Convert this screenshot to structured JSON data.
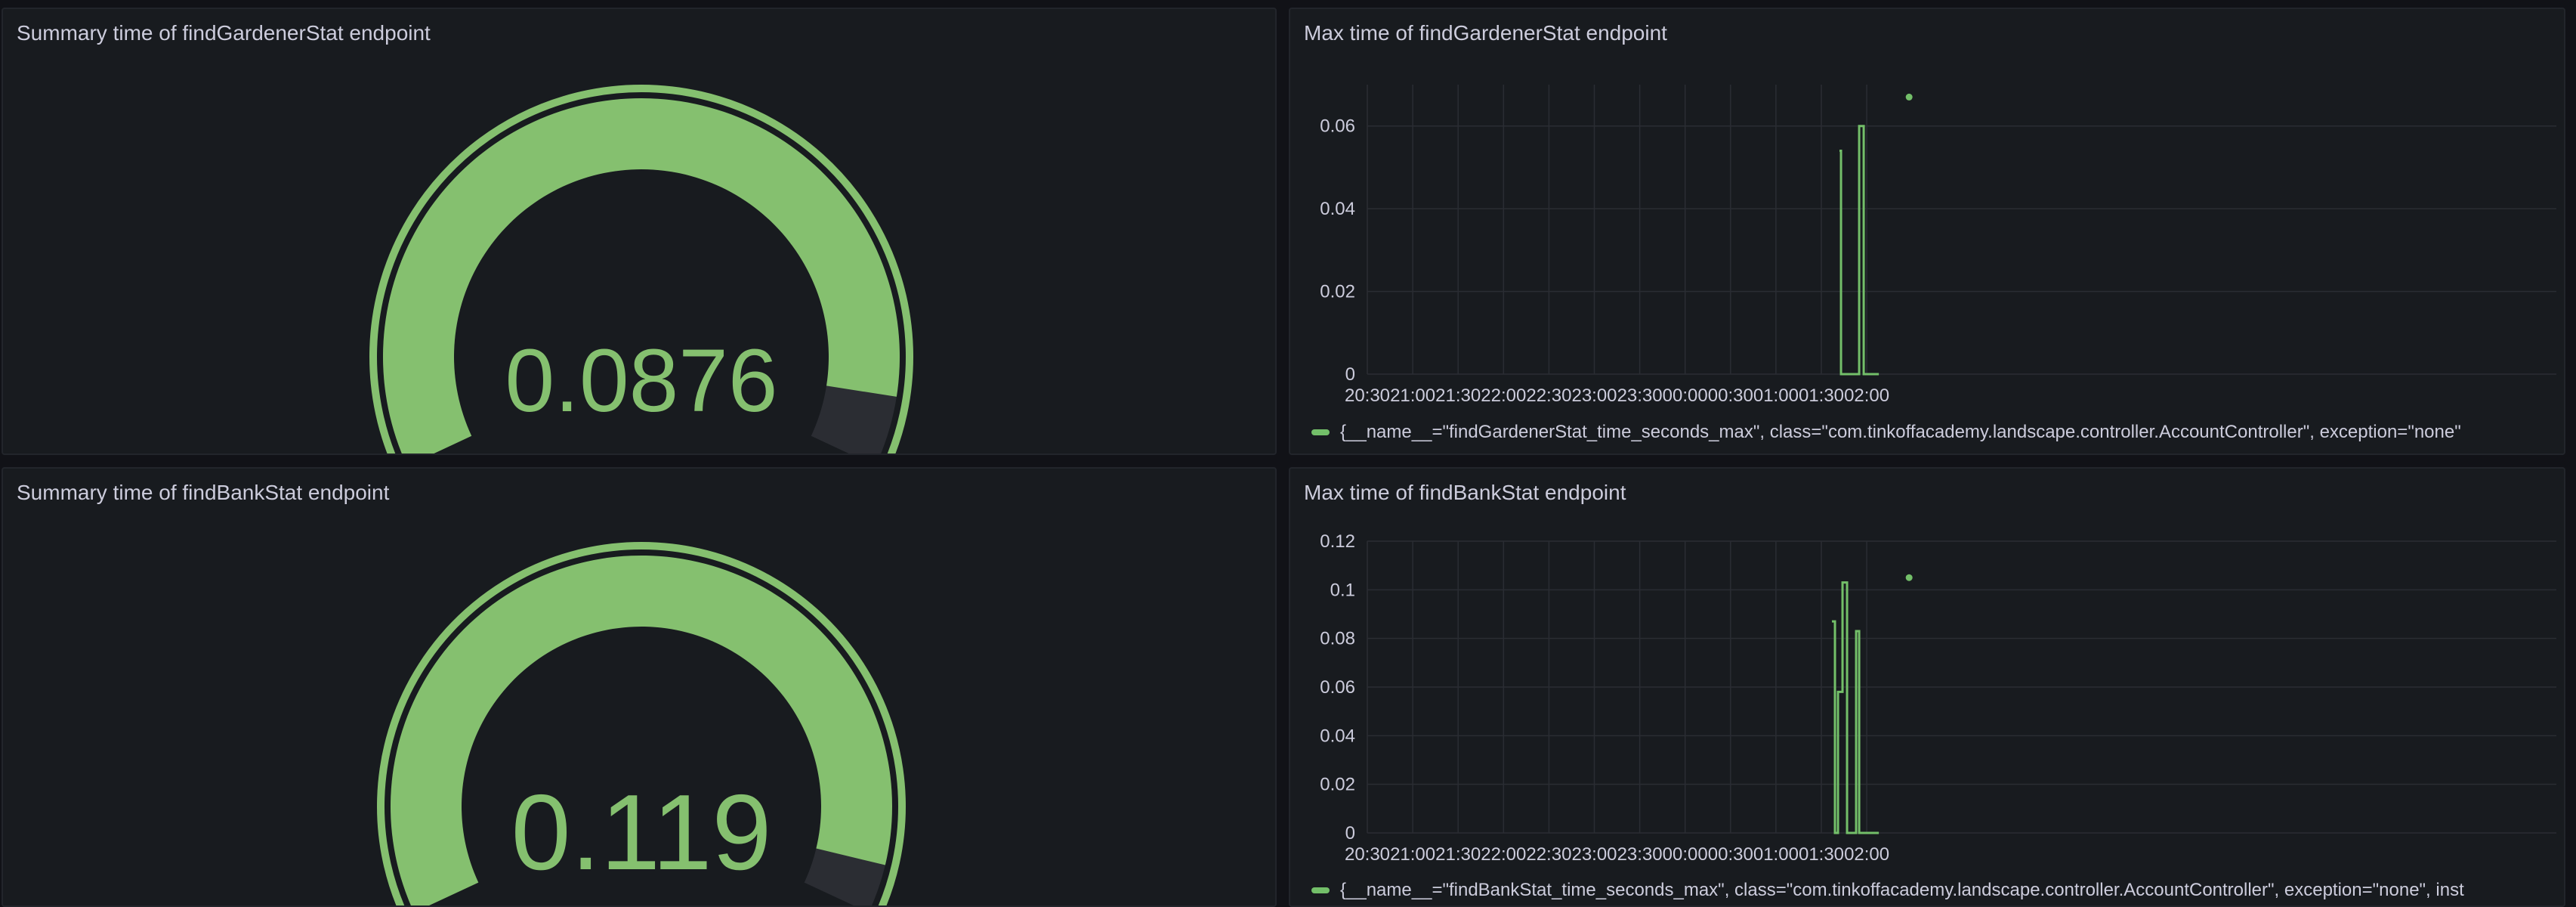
{
  "colors": {
    "series": "#73bf69",
    "gauge_fill": "#85c06f",
    "gauge_track": "#2b2d33",
    "panel_bg": "#181b1f",
    "grid": "#2a2d33",
    "axis_text": "#ccccdc"
  },
  "panels": {
    "gauge_gardener": {
      "title": "Summary time of findGardenerStat endpoint",
      "value_text": "0.0876",
      "value": 0.0876,
      "fill_fraction": 0.93
    },
    "gauge_bank": {
      "title": "Summary time of findBankStat endpoint",
      "value_text": "0.119",
      "value": 0.119,
      "fill_fraction": 0.95
    },
    "ts_gardener": {
      "title": "Max time of findGardenerStat endpoint",
      "legend": "{__name__=\"findGardenerStat_time_seconds_max\", class=\"com.tinkoffacademy.landscape.controller.AccountController\", exception=\"none\""
    },
    "ts_bank": {
      "title": "Max time of findBankStat endpoint",
      "legend": "{__name__=\"findBankStat_time_seconds_max\", class=\"com.tinkoffacademy.landscape.controller.AccountController\", exception=\"none\", inst"
    }
  },
  "chart_data": [
    {
      "type": "line",
      "title": "Max time of findGardenerStat endpoint",
      "x_ticks": [
        "20:30",
        "21:00",
        "21:30",
        "22:00",
        "22:30",
        "23:00",
        "23:30",
        "00:00",
        "00:30",
        "01:00",
        "01:30",
        "02:00"
      ],
      "y_ticks": [
        "0",
        "0.02",
        "0.04",
        "0.06"
      ],
      "ylim": [
        0,
        0.07
      ],
      "series": [
        {
          "name": "{__name__=\"findGardenerStat_time_seconds_max\", class=\"com.tinkoffacademy.landscape.controller.AccountController\", exception=\"none\"",
          "points": [
            [
              "01:42",
              0.054
            ],
            [
              "01:43",
              0.054
            ],
            [
              "01:43",
              0
            ],
            [
              "01:48",
              0
            ],
            [
              "01:48",
              0
            ],
            [
              "01:55",
              0
            ],
            [
              "01:55",
              0.06
            ],
            [
              "01:58",
              0.06
            ],
            [
              "01:58",
              0
            ],
            [
              "02:08",
              0
            ]
          ],
          "dots": [
            [
              "02:28",
              0.067
            ]
          ]
        }
      ]
    },
    {
      "type": "line",
      "title": "Max time of findBankStat endpoint",
      "x_ticks": [
        "20:30",
        "21:00",
        "21:30",
        "22:00",
        "22:30",
        "23:00",
        "23:30",
        "00:00",
        "00:30",
        "01:00",
        "01:30",
        "02:00"
      ],
      "y_ticks": [
        "0",
        "0.02",
        "0.04",
        "0.06",
        "0.08",
        "0.1",
        "0.12"
      ],
      "ylim": [
        0,
        0.12
      ],
      "series": [
        {
          "name": "{__name__=\"findBankStat_time_seconds_max\", class=\"com.tinkoffacademy.landscape.controller.AccountController\", exception=\"none\", inst",
          "points": [
            [
              "01:37",
              0.087
            ],
            [
              "01:39",
              0.087
            ],
            [
              "01:39",
              0
            ],
            [
              "01:41",
              0
            ],
            [
              "01:41",
              0.058
            ],
            [
              "01:44",
              0.058
            ],
            [
              "01:44",
              0.103
            ],
            [
              "01:47",
              0.103
            ],
            [
              "01:47",
              0
            ],
            [
              "01:53",
              0
            ],
            [
              "01:53",
              0.083
            ],
            [
              "01:55",
              0.083
            ],
            [
              "01:55",
              0
            ],
            [
              "02:08",
              0
            ]
          ],
          "dots": [
            [
              "02:28",
              0.105
            ]
          ]
        }
      ]
    }
  ]
}
